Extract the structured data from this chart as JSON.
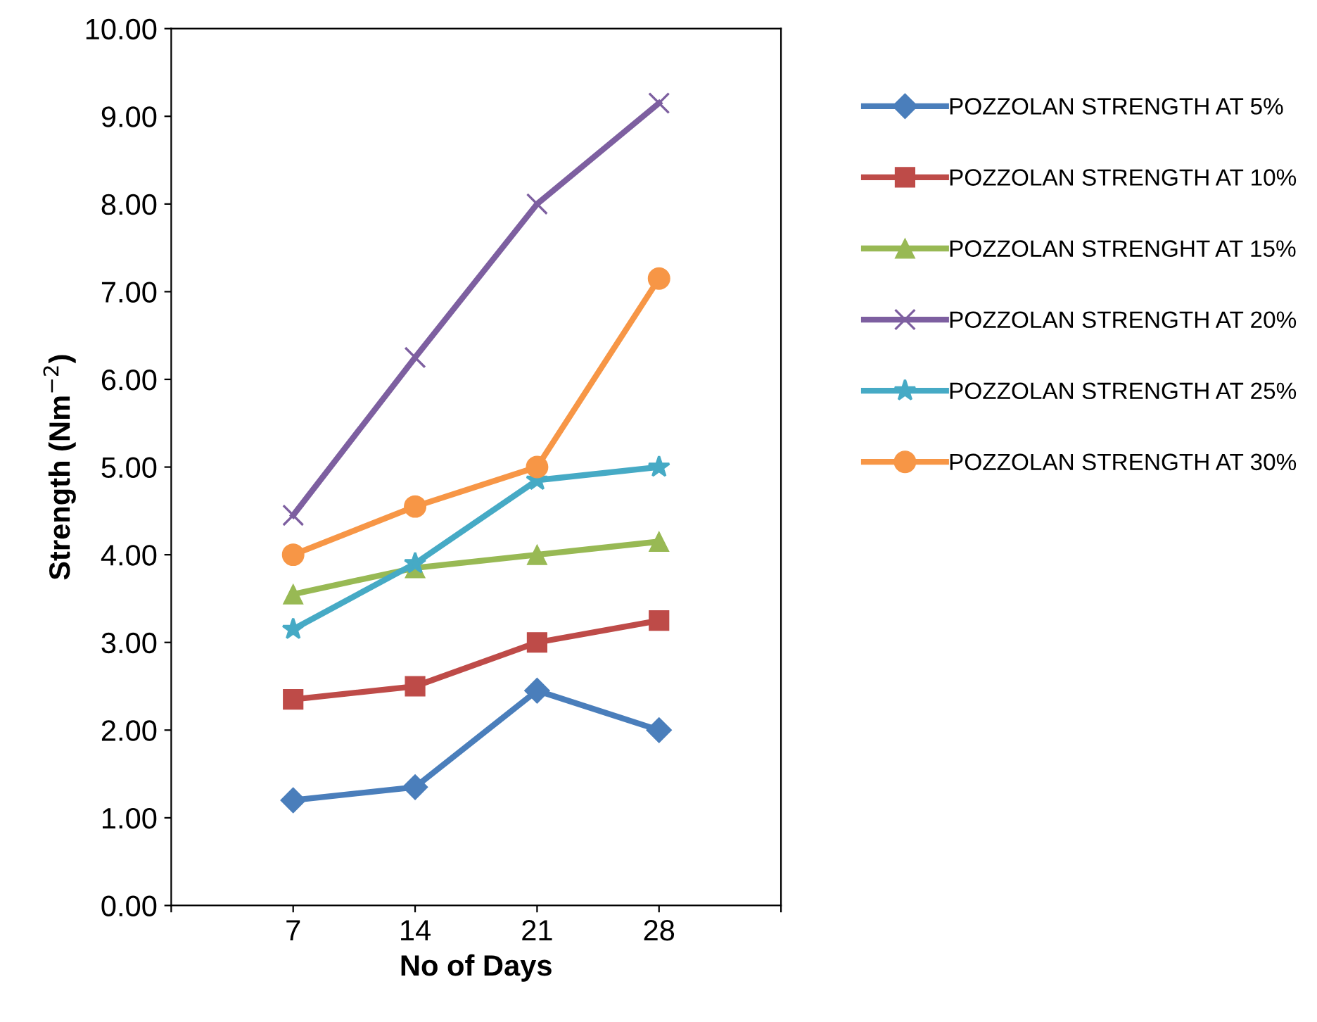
{
  "chart_data": {
    "type": "line",
    "xlabel": "No of Days",
    "ylabel": "Strength (Nm$^{−2}$)",
    "x": [
      7,
      14,
      21,
      28
    ],
    "xlim": [
      0,
      35
    ],
    "xticks": [
      {
        "value": 0,
        "label": null
      },
      7,
      14,
      21,
      28,
      {
        "value": 35,
        "label": null
      }
    ],
    "ylim": [
      0,
      10
    ],
    "yticks": [
      {
        "value": 0,
        "label": "0.00"
      },
      {
        "value": 1,
        "label": "1.00"
      },
      {
        "value": 2,
        "label": "2.00"
      },
      {
        "value": 3,
        "label": "3.00"
      },
      {
        "value": 4,
        "label": "4.00"
      },
      {
        "value": 5,
        "label": "5.00"
      },
      {
        "value": 6,
        "label": "6.00"
      },
      {
        "value": 7,
        "label": "7.00"
      },
      {
        "value": 8,
        "label": "8.00"
      },
      {
        "value": 9,
        "label": "9.00"
      },
      {
        "value": 10,
        "label": "10.00"
      }
    ],
    "grid": false,
    "legend": "right",
    "line_style": "solid",
    "series": [
      {
        "name": "POZZOLAN STRENGTH AT 5%",
        "color": "#4a7ebb",
        "marker": "diamond",
        "values": [
          1.2,
          1.35,
          2.45,
          2.0
        ]
      },
      {
        "name": "POZZOLAN STRENGTH AT 10%",
        "color": "#be4b48",
        "marker": "square",
        "values": [
          2.35,
          2.5,
          3.0,
          3.25
        ]
      },
      {
        "name": "POZZOLAN STRENGHT AT 15%",
        "color": "#98b954",
        "marker": "triangle",
        "values": [
          3.55,
          3.85,
          4.0,
          4.15
        ]
      },
      {
        "name": "POZZOLAN STRENGTH AT 20%",
        "color": "#7d5fa0",
        "marker": "cross",
        "values": [
          4.45,
          6.25,
          8.0,
          9.15
        ]
      },
      {
        "name": "POZZOLAN STRENGTH AT 25%",
        "color": "#46aac5",
        "marker": "star",
        "values": [
          3.15,
          3.9,
          4.85,
          5.0
        ]
      },
      {
        "name": "POZZOLAN STRENGTH AT 30%",
        "color": "#f79646",
        "marker": "circle",
        "values": [
          4.0,
          4.55,
          5.0,
          7.15
        ]
      }
    ]
  }
}
